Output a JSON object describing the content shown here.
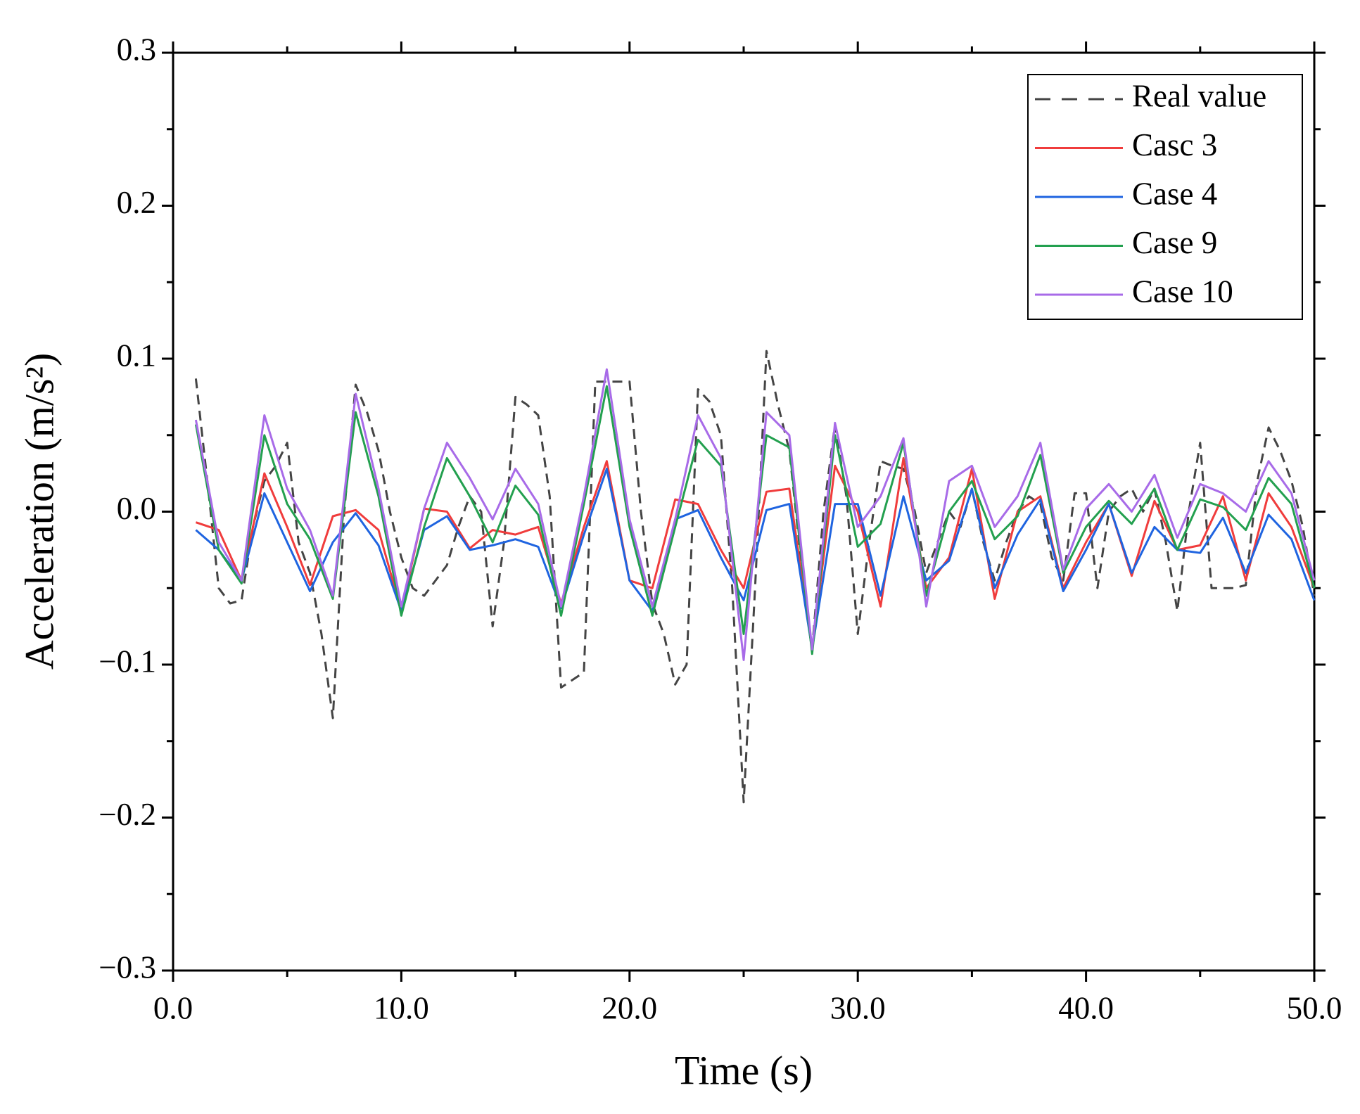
{
  "chart_data": {
    "type": "line",
    "xlabel": "Time (s)",
    "ylabel": "Acceleration (m/s²)",
    "xlim": [
      0,
      50
    ],
    "ylim": [
      -0.3,
      0.3
    ],
    "xticks": [
      {
        "value": 0,
        "label": "0.0"
      },
      {
        "value": 10,
        "label": "10.0"
      },
      {
        "value": 20,
        "label": "20.0"
      },
      {
        "value": 30,
        "label": "30.0"
      },
      {
        "value": 40,
        "label": "40.0"
      },
      {
        "value": 50,
        "label": "50.0"
      }
    ],
    "yticks": [
      {
        "value": -0.3,
        "label": "−0.3"
      },
      {
        "value": -0.2,
        "label": "−0.2"
      },
      {
        "value": -0.1,
        "label": "−0.1"
      },
      {
        "value": 0,
        "label": "0.0"
      },
      0.1,
      0.2,
      0.3
    ],
    "legend": "upper right",
    "series": [
      {
        "name": "Real value",
        "color": "#444444",
        "dash": true,
        "x": [
          1,
          1.5,
          2,
          2.5,
          3,
          3.5,
          4,
          4.5,
          5,
          5.5,
          6,
          6.5,
          7,
          7.5,
          8,
          8.5,
          9,
          9.5,
          10,
          10.5,
          11,
          11.5,
          12,
          12.5,
          13,
          13.5,
          14,
          14.5,
          15,
          15.5,
          16,
          16.5,
          17,
          17.5,
          18,
          18.5,
          19,
          19.5,
          20,
          20.5,
          21,
          21.5,
          22,
          22.5,
          23,
          23.5,
          24,
          24.5,
          25,
          25.5,
          26,
          26.5,
          27,
          27.5,
          28,
          28.5,
          29,
          29.5,
          30,
          30.5,
          31,
          31.5,
          32,
          32.5,
          33,
          33.5,
          34,
          34.5,
          35,
          35.5,
          36,
          36.5,
          37,
          37.5,
          38,
          38.5,
          39,
          39.5,
          40,
          40.5,
          41,
          41.5,
          42,
          42.5,
          43,
          43.5,
          44,
          44.5,
          45,
          45.5,
          46,
          46.5,
          47,
          47.5,
          48,
          48.5,
          49,
          49.5,
          50
        ],
        "values": [
          0.087,
          0.02,
          -0.05,
          -0.06,
          -0.058,
          -0.01,
          0.02,
          0.03,
          0.045,
          -0.02,
          -0.04,
          -0.08,
          -0.135,
          0.0,
          0.083,
          0.065,
          0.04,
          0.0,
          -0.03,
          -0.05,
          -0.055,
          -0.045,
          -0.035,
          -0.01,
          0.01,
          0.0,
          -0.075,
          -0.02,
          0.075,
          0.07,
          0.063,
          0.01,
          -0.115,
          -0.11,
          -0.105,
          0.085,
          0.085,
          0.085,
          0.085,
          0.0,
          -0.06,
          -0.08,
          -0.113,
          -0.1,
          0.08,
          0.072,
          0.05,
          -0.05,
          -0.19,
          -0.05,
          0.105,
          0.07,
          0.04,
          -0.03,
          -0.09,
          0.0,
          0.057,
          0.01,
          -0.08,
          -0.02,
          0.033,
          0.03,
          0.028,
          0.0,
          -0.04,
          -0.02,
          0.0,
          -0.01,
          0.015,
          -0.02,
          -0.045,
          -0.02,
          0.0,
          0.01,
          0.005,
          -0.03,
          -0.045,
          0.012,
          0.012,
          -0.05,
          0.0,
          0.01,
          0.015,
          0.0,
          0.015,
          -0.02,
          -0.065,
          0.0,
          0.045,
          -0.05,
          -0.05,
          -0.05,
          -0.048,
          0.02,
          0.055,
          0.04,
          0.02,
          -0.01,
          -0.055
        ]
      },
      {
        "name": "Casc 3",
        "color": "#f03c3c",
        "x": [
          1,
          2,
          3,
          4,
          5,
          6,
          7,
          8,
          9,
          10,
          11,
          12,
          13,
          14,
          15,
          16,
          17,
          18,
          19,
          20,
          21,
          22,
          23,
          24,
          25,
          26,
          27,
          28,
          29,
          30,
          31,
          32,
          33,
          34,
          35,
          36,
          37,
          38,
          39,
          40,
          41,
          42,
          43,
          44,
          45,
          46,
          47,
          48,
          49,
          50
        ],
        "values": [
          -0.007,
          -0.012,
          -0.045,
          0.025,
          -0.01,
          -0.048,
          -0.003,
          0.001,
          -0.012,
          -0.065,
          0.002,
          0.0,
          -0.024,
          -0.012,
          -0.015,
          -0.01,
          -0.06,
          -0.01,
          0.033,
          -0.045,
          -0.05,
          0.008,
          0.005,
          -0.025,
          -0.05,
          0.013,
          0.015,
          -0.09,
          0.03,
          0.0,
          -0.062,
          0.035,
          -0.05,
          -0.03,
          0.028,
          -0.057,
          0.0,
          0.01,
          -0.05,
          -0.02,
          0.005,
          -0.042,
          0.007,
          -0.025,
          -0.022,
          0.01,
          -0.045,
          0.012,
          -0.01,
          -0.05
        ]
      },
      {
        "name": "Case 4",
        "color": "#1f64e0",
        "x": [
          1,
          2,
          3,
          4,
          5,
          6,
          7,
          8,
          9,
          10,
          11,
          12,
          13,
          14,
          15,
          16,
          17,
          18,
          19,
          20,
          21,
          22,
          23,
          24,
          25,
          26,
          27,
          28,
          29,
          30,
          31,
          32,
          33,
          34,
          35,
          36,
          37,
          38,
          39,
          40,
          41,
          42,
          43,
          44,
          45,
          46,
          47,
          48,
          49,
          50
        ],
        "values": [
          -0.012,
          -0.025,
          -0.045,
          0.012,
          -0.02,
          -0.052,
          -0.02,
          -0.001,
          -0.022,
          -0.065,
          -0.012,
          -0.003,
          -0.025,
          -0.022,
          -0.018,
          -0.023,
          -0.063,
          -0.015,
          0.028,
          -0.045,
          -0.065,
          -0.005,
          0.001,
          -0.03,
          -0.058,
          0.001,
          0.005,
          -0.09,
          0.005,
          0.005,
          -0.055,
          0.01,
          -0.045,
          -0.032,
          0.015,
          -0.05,
          -0.015,
          0.008,
          -0.052,
          -0.025,
          0.005,
          -0.04,
          -0.01,
          -0.025,
          -0.027,
          -0.004,
          -0.04,
          -0.002,
          -0.018,
          -0.058
        ]
      },
      {
        "name": "Case 9",
        "color": "#23a04f",
        "x": [
          1,
          2,
          3,
          4,
          5,
          6,
          7,
          8,
          9,
          10,
          11,
          12,
          13,
          14,
          15,
          16,
          17,
          18,
          19,
          20,
          21,
          22,
          23,
          24,
          25,
          26,
          27,
          28,
          29,
          30,
          31,
          32,
          33,
          34,
          35,
          36,
          37,
          38,
          39,
          40,
          41,
          42,
          43,
          44,
          45,
          46,
          47,
          48,
          49,
          50
        ],
        "values": [
          0.057,
          -0.025,
          -0.047,
          0.05,
          0.005,
          -0.018,
          -0.057,
          0.065,
          0.01,
          -0.068,
          -0.01,
          0.035,
          0.01,
          -0.02,
          0.017,
          -0.002,
          -0.068,
          0.005,
          0.082,
          -0.01,
          -0.068,
          -0.01,
          0.047,
          0.03,
          -0.08,
          0.05,
          0.042,
          -0.093,
          0.05,
          -0.023,
          -0.008,
          0.045,
          -0.055,
          0.0,
          0.02,
          -0.018,
          -0.003,
          0.037,
          -0.04,
          -0.01,
          0.007,
          -0.008,
          0.015,
          -0.025,
          0.008,
          0.003,
          -0.012,
          0.022,
          0.005,
          -0.05
        ]
      },
      {
        "name": "Case 10",
        "color": "#a86be8",
        "x": [
          1,
          2,
          3,
          4,
          5,
          6,
          7,
          8,
          9,
          10,
          11,
          12,
          13,
          14,
          15,
          16,
          17,
          18,
          19,
          20,
          21,
          22,
          23,
          24,
          25,
          26,
          27,
          28,
          29,
          30,
          31,
          32,
          33,
          34,
          35,
          36,
          37,
          38,
          39,
          40,
          41,
          42,
          43,
          44,
          45,
          46,
          47,
          48,
          49,
          50
        ],
        "values": [
          0.06,
          -0.02,
          -0.045,
          0.063,
          0.015,
          -0.012,
          -0.055,
          0.077,
          0.015,
          -0.062,
          0.002,
          0.045,
          0.022,
          -0.005,
          0.028,
          0.005,
          -0.062,
          0.01,
          0.093,
          -0.005,
          -0.062,
          -0.005,
          0.063,
          0.035,
          -0.097,
          0.065,
          0.05,
          -0.09,
          0.058,
          -0.01,
          0.01,
          0.048,
          -0.062,
          0.02,
          0.03,
          -0.01,
          0.01,
          0.045,
          -0.038,
          0.002,
          0.018,
          0.0,
          0.024,
          -0.017,
          0.018,
          0.012,
          0.0,
          0.033,
          0.012,
          -0.045
        ]
      }
    ]
  }
}
